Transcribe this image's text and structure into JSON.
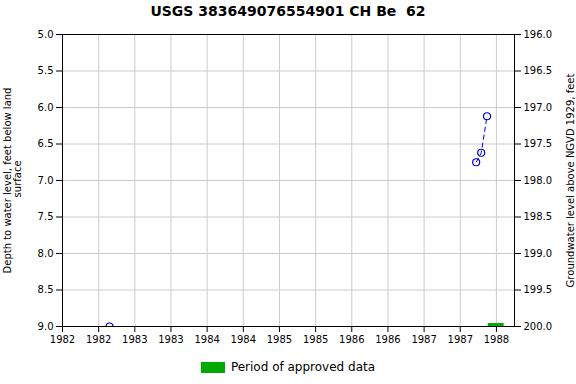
{
  "chart_data": {
    "type": "line",
    "title": "USGS 383649076554901 CH Be  62",
    "ylabel": "Depth to water level, feet below land\n surface",
    "y2label": "Groundwater level above NGVD 1929, feet",
    "xlim": [
      1982.0,
      1988.25
    ],
    "xticks": [
      1982,
      {
        "value": 1982.5,
        "label": "1982"
      },
      1983,
      {
        "value": 1983.5,
        "label": "1983"
      },
      1984,
      {
        "value": 1984.5,
        "label": "1984"
      },
      1985,
      {
        "value": 1985.5,
        "label": "1985"
      },
      1986,
      {
        "value": 1986.5,
        "label": "1986"
      },
      1987,
      {
        "value": 1987.5,
        "label": "1987"
      },
      1988
    ],
    "ylim": [
      9.0,
      5.0
    ],
    "yticks": [
      {
        "value": 5.0,
        "label": "5.0"
      },
      5.5,
      {
        "value": 6.0,
        "label": "6.0"
      },
      6.5,
      {
        "value": 7.0,
        "label": "7.0"
      },
      7.5,
      {
        "value": 8.0,
        "label": "8.0"
      },
      8.5,
      {
        "value": 9.0,
        "label": "9.0"
      }
    ],
    "y2lim": [
      200.0,
      196.0
    ],
    "y2ticks": [
      {
        "value": 200.0,
        "label": "200.0"
      },
      199.5,
      {
        "value": 199.0,
        "label": "199.0"
      },
      198.5,
      {
        "value": 198.0,
        "label": "198.0"
      },
      197.5,
      {
        "value": 197.0,
        "label": "197.0"
      },
      196.5,
      {
        "value": 196.0,
        "label": "196.0"
      }
    ],
    "grid": true,
    "legend": "bottom",
    "series": [
      {
        "type": "scatter",
        "x": [
          1982.65
        ],
        "values": [
          9.0
        ],
        "color": "#0000cc",
        "marker": "circle"
      },
      {
        "type": "line",
        "x": [
          1987.72,
          1987.79,
          1987.87
        ],
        "values": [
          6.75,
          6.62,
          6.12
        ],
        "color": "#0000cc",
        "marker": "circle",
        "line_style": "dashed"
      },
      {
        "type": "line",
        "name": "Period of approved data",
        "x": [
          1987.88,
          1988.1
        ],
        "values": [
          9.0,
          9.0
        ],
        "color": "#00aa00"
      }
    ]
  }
}
